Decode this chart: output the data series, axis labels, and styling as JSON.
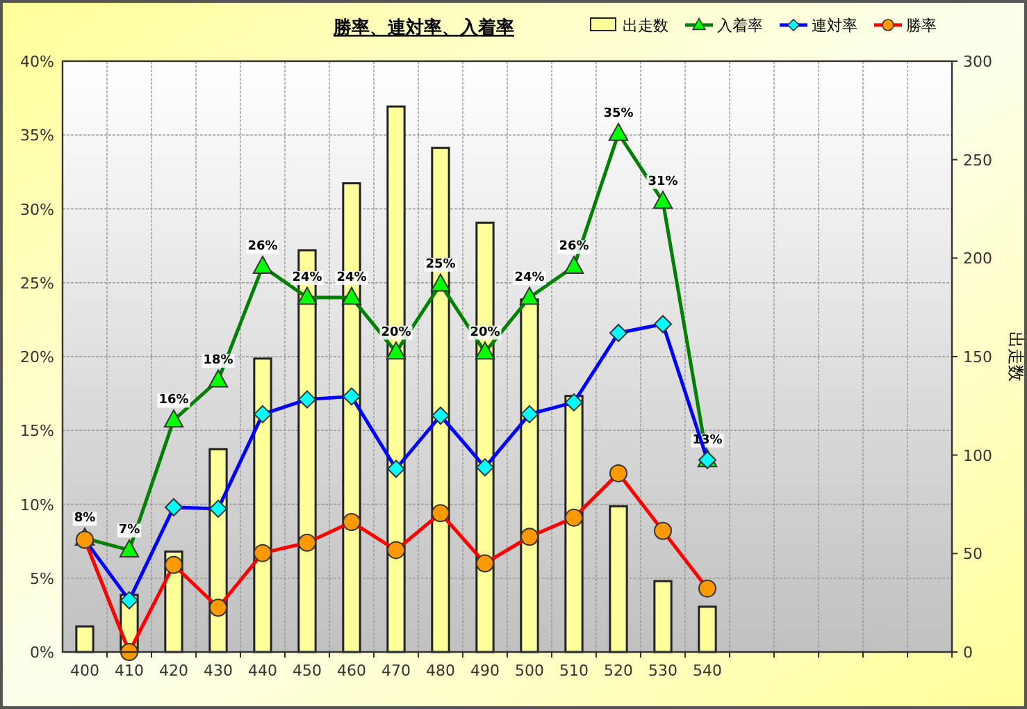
{
  "chart_data": {
    "type": "bar",
    "title": "勝率、連対率、入着率",
    "categories": [
      "400",
      "410",
      "420",
      "430",
      "440",
      "450",
      "460",
      "470",
      "480",
      "490",
      "500",
      "510",
      "520",
      "530",
      "540",
      null,
      null,
      null,
      null,
      null
    ],
    "series": [
      {
        "name": "出走数",
        "axis": "y2",
        "color": "#ffff99",
        "values": [
          13,
          29,
          51,
          103,
          149,
          204,
          238,
          277,
          256,
          218,
          179,
          130,
          74,
          36,
          23,
          null,
          null,
          null,
          null,
          null
        ]
      },
      {
        "name": "入着率",
        "type": "line",
        "axis": "y",
        "color": "#008000",
        "marker": "triangle",
        "colors": [
          "#00ff00",
          "#00ff00",
          "#00ff00",
          "#00ff00",
          "#00ff00",
          "#00ff00",
          "#00ff00",
          "#00ff00",
          "#00ff00",
          "#00ff00",
          "#00ff00",
          "#00ff00",
          "#00ff00",
          "#00ff00",
          "#00ff00",
          null,
          null,
          null,
          null,
          null
        ],
        "values": [
          7.7,
          6.9,
          15.7,
          18.4,
          26.1,
          24,
          24,
          20.3,
          24.9,
          20.3,
          24,
          26.1,
          35.1,
          30.5,
          13.0,
          null,
          null,
          null,
          null,
          null
        ],
        "value_labels": [
          "8%",
          "7%",
          "16%",
          "18%",
          "26%",
          "24%",
          "24%",
          "20%",
          "25%",
          "20%",
          "24%",
          "26%",
          "35%",
          "31%",
          "13%",
          null,
          null,
          null,
          null,
          null
        ]
      },
      {
        "name": "連対率",
        "type": "line",
        "axis": "y",
        "color": "#0000ff",
        "marker": "diamond",
        "colors": [
          "#00ffff",
          "#00ffff",
          "#00ffff",
          "#00ffff",
          "#00ffff",
          "#00ffff",
          "#00ffff",
          "#00ffff",
          "#00ffff",
          "#00ffff",
          "#00ffff",
          "#00ffff",
          "#00ffff",
          "#00ffff",
          "#00ffff",
          null,
          null,
          null,
          null,
          null
        ],
        "values": [
          7.6,
          3.5,
          9.8,
          9.7,
          16.1,
          17.1,
          17.3,
          12.4,
          16.0,
          12.5,
          16.1,
          16.9,
          21.6,
          22.2,
          13.0,
          null,
          null,
          null,
          null,
          null
        ]
      },
      {
        "name": "勝率",
        "type": "line",
        "axis": "y",
        "color": "#ff0000",
        "marker": "circle",
        "colors": [
          "#ff9900",
          "#ff9900",
          "#ff9900",
          "#ff9900",
          "#ff9900",
          "#ff9900",
          "#ff9900",
          "#ff9900",
          "#ff9900",
          "#ff9900",
          "#ff9900",
          "#ff9900",
          "#ff9900",
          "#ff9900",
          "#ff9900",
          null,
          null,
          null,
          null,
          null
        ],
        "values": [
          7.6,
          0,
          5.9,
          3.0,
          6.7,
          7.4,
          8.8,
          6.9,
          9.4,
          6.0,
          7.8,
          9.1,
          12.1,
          8.2,
          4.3,
          null,
          null,
          null,
          null,
          null
        ]
      }
    ],
    "ylim": [
      0,
      40
    ],
    "yticks": [
      {
        "value": 0,
        "label": "0%"
      },
      {
        "value": 5,
        "label": "5%"
      },
      {
        "value": 10,
        "label": "10%"
      },
      {
        "value": 15,
        "label": "15%"
      },
      {
        "value": 20,
        "label": "20%"
      },
      {
        "value": 25,
        "label": "25%"
      },
      {
        "value": 30,
        "label": "30%"
      },
      {
        "value": 35,
        "label": "35%"
      },
      {
        "value": 40,
        "label": "40%"
      }
    ],
    "y2lim": [
      0,
      300
    ],
    "y2ticks": [
      0,
      50,
      100,
      150,
      200,
      250,
      300
    ],
    "y2label": "出走数",
    "grid": true,
    "legend": "top"
  }
}
